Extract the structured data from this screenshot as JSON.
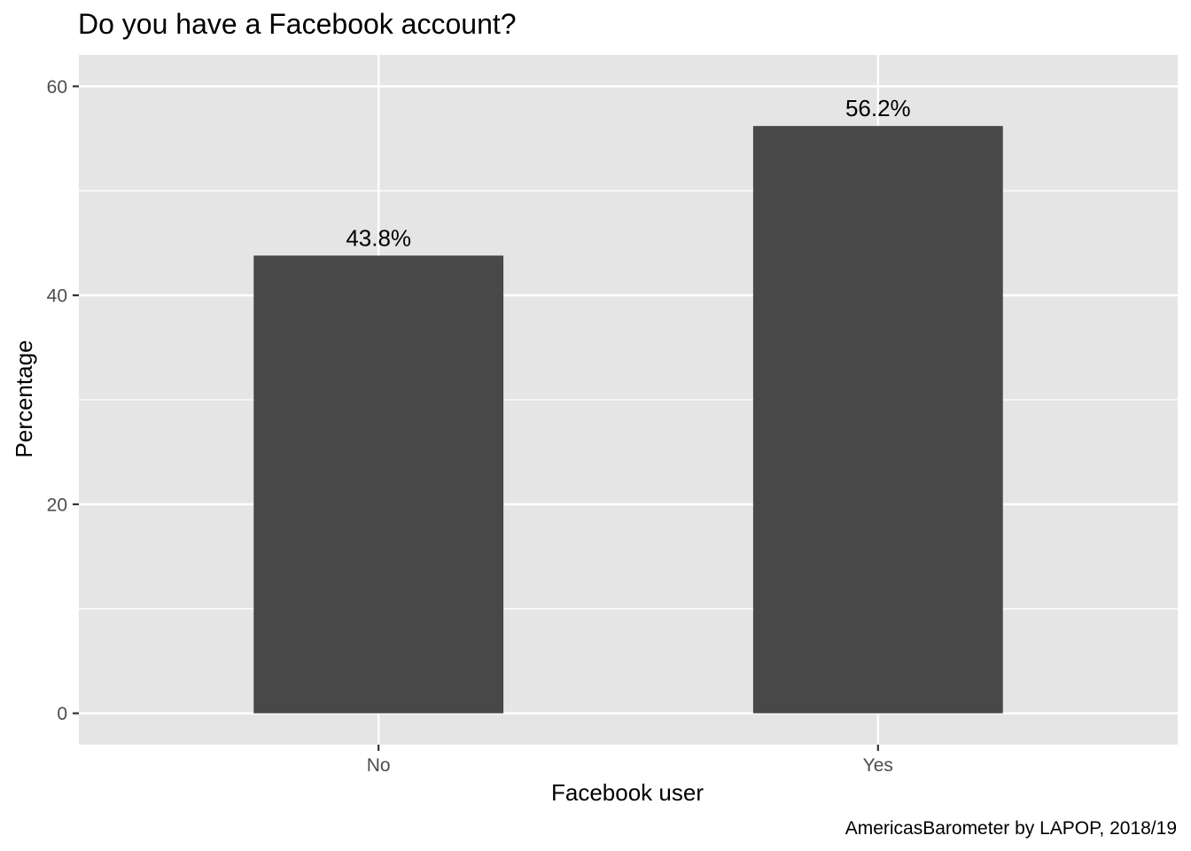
{
  "chart_data": {
    "type": "bar",
    "title": "Do you have a Facebook account?",
    "xlabel": "Facebook user",
    "ylabel": "Percentage",
    "caption": "AmericasBarometer by LAPOP, 2018/19",
    "categories": [
      "No",
      "Yes"
    ],
    "values": [
      43.8,
      56.2
    ],
    "data_labels": [
      "43.8%",
      "56.2%"
    ],
    "ylim": [
      -3,
      63
    ],
    "yticks": [
      0,
      20,
      40,
      60
    ],
    "ytick_labels": [
      "0",
      "20",
      "40",
      "60"
    ],
    "grid": true,
    "legend": "none",
    "colors": {
      "bar": "#484848",
      "panel": "#e5e5e5",
      "grid": "#ffffff"
    }
  }
}
